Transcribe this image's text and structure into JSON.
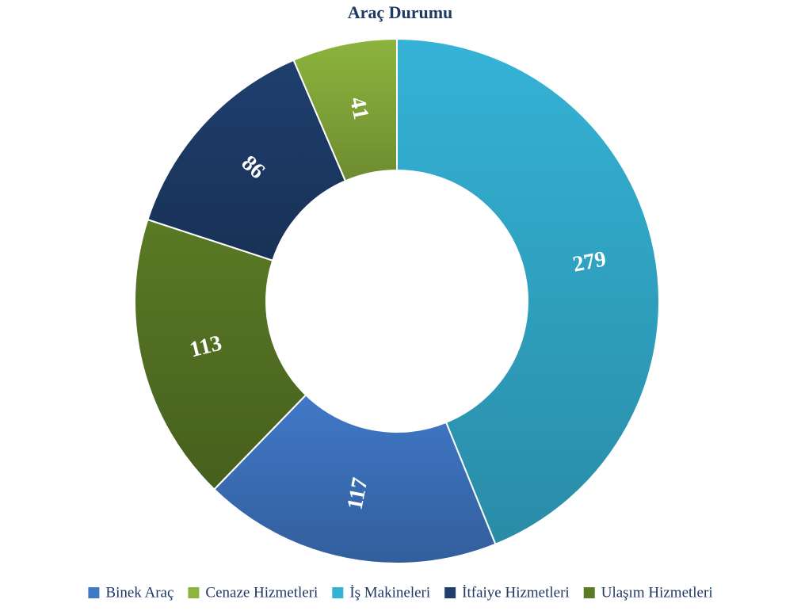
{
  "chart_data": {
    "type": "donut",
    "title": "Araç Durumu",
    "categories": [
      "İş Makineleri",
      "Binek Araç",
      "Ulaşım Hizmetleri",
      "İtfaiye Hizmetleri",
      "Cenaze Hizmetleri"
    ],
    "values": [
      279,
      117,
      113,
      86,
      41
    ],
    "colors": [
      "#35b3d6",
      "#4079c8",
      "#5a7a25",
      "#1f3f6e",
      "#8db43e"
    ],
    "legend": "bottom"
  }
}
